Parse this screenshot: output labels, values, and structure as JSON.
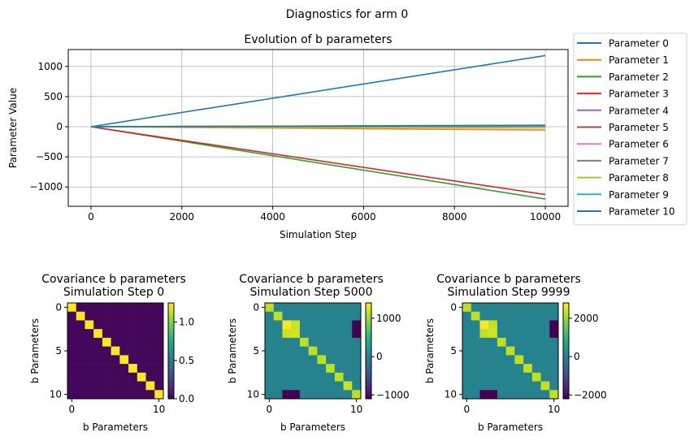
{
  "figure": {
    "suptitle": "Diagnostics for arm 0"
  },
  "chart_data": [
    {
      "type": "line",
      "title": "Evolution of b parameters",
      "xlabel": "Simulation Step",
      "ylabel": "Parameter Value",
      "xlim": [
        -500,
        10500
      ],
      "ylim": [
        -1320,
        1280
      ],
      "xticks": [
        0,
        2000,
        4000,
        6000,
        8000,
        10000
      ],
      "xtick_labels": [
        "0",
        "2000",
        "4000",
        "6000",
        "8000",
        "10000"
      ],
      "yticks": [
        -1000,
        -500,
        0,
        500,
        1000
      ],
      "ytick_labels": [
        "−1000",
        "−500",
        "0",
        "500",
        "1000"
      ],
      "grid": true,
      "legend_position": "outside-right",
      "x": [
        0,
        10000
      ],
      "series": [
        {
          "name": "Parameter 0",
          "color": "#1f77b4",
          "values": [
            0,
            1180
          ]
        },
        {
          "name": "Parameter 1",
          "color": "#ff7f0e",
          "values": [
            0,
            -55
          ]
        },
        {
          "name": "Parameter 2",
          "color": "#2ca02c",
          "values": [
            0,
            -1200
          ]
        },
        {
          "name": "Parameter 3",
          "color": "#d62728",
          "values": [
            0,
            -1125
          ]
        },
        {
          "name": "Parameter 4",
          "color": "#9467bd",
          "values": [
            0,
            15
          ]
        },
        {
          "name": "Parameter 5",
          "color": "#8c564b",
          "values": [
            0,
            25
          ]
        },
        {
          "name": "Parameter 6",
          "color": "#e377c2",
          "values": [
            0,
            5
          ]
        },
        {
          "name": "Parameter 7",
          "color": "#7f7f7f",
          "values": [
            0,
            20
          ]
        },
        {
          "name": "Parameter 8",
          "color": "#bcbd22",
          "values": [
            0,
            -20
          ]
        },
        {
          "name": "Parameter 9",
          "color": "#17becf",
          "values": [
            0,
            10
          ]
        },
        {
          "name": "Parameter 10",
          "color": "#1f77b4",
          "values": [
            0,
            18
          ]
        }
      ]
    },
    {
      "type": "heatmap",
      "title": "Covariance b parameters\nSimulation Step 0",
      "title_lines": [
        "Covariance b parameters",
        "Simulation Step 0"
      ],
      "xlabel": "b Parameters",
      "ylabel": "b Parameters",
      "xticks": [
        0,
        10
      ],
      "xtick_labels": [
        "0",
        "10"
      ],
      "yticks": [
        0,
        5,
        10
      ],
      "ytick_labels": [
        "0",
        "5",
        "10"
      ],
      "colormap": "viridis",
      "vmin": 0.0,
      "vmax": 1.25,
      "colorbar_ticks": [
        0.0,
        0.5,
        1.0
      ],
      "colorbar_tick_labels": [
        "0.0",
        "0.5",
        "1.0"
      ],
      "diagonal": [
        1.25,
        1.25,
        1.25,
        1.25,
        1.25,
        1.25,
        1.25,
        1.25,
        1.25,
        1.25,
        1.25
      ],
      "off_diagonal_default": 0.02,
      "special_cells": []
    },
    {
      "type": "heatmap",
      "title": "Covariance b parameters\nSimulation Step 5000",
      "title_lines": [
        "Covariance b parameters",
        "Simulation Step 5000"
      ],
      "xlabel": "b Parameters",
      "ylabel": "b Parameters",
      "xticks": [
        0,
        10
      ],
      "xtick_labels": [
        "0",
        "10"
      ],
      "yticks": [
        0,
        5,
        10
      ],
      "ytick_labels": [
        "0",
        "5",
        "10"
      ],
      "colormap": "viridis",
      "vmin": -1100,
      "vmax": 1400,
      "colorbar_ticks": [
        -1000,
        0,
        1000
      ],
      "colorbar_tick_labels": [
        "−1000",
        "0",
        "1000"
      ],
      "diagonal": [
        1150,
        1150,
        1400,
        1250,
        1150,
        1150,
        1150,
        1150,
        1150,
        1200,
        1150
      ],
      "off_diagonal_default": 0,
      "special_cells": [
        {
          "row": 2,
          "col": 3,
          "value": 1200
        },
        {
          "row": 3,
          "col": 2,
          "value": 1200
        },
        {
          "row": 2,
          "col": 10,
          "value": -1100
        },
        {
          "row": 3,
          "col": 10,
          "value": -1100
        },
        {
          "row": 10,
          "col": 2,
          "value": -1100
        },
        {
          "row": 10,
          "col": 3,
          "value": -1100
        }
      ]
    },
    {
      "type": "heatmap",
      "title": "Covariance b parameters\nSimulation Step 9999",
      "title_lines": [
        "Covariance b parameters",
        "Simulation Step 9999"
      ],
      "xlabel": "b Parameters",
      "ylabel": "b Parameters",
      "xticks": [
        0,
        10
      ],
      "xtick_labels": [
        "0",
        "10"
      ],
      "yticks": [
        0,
        5,
        10
      ],
      "ytick_labels": [
        "0",
        "5",
        "10"
      ],
      "colormap": "viridis",
      "vmin": -2200,
      "vmax": 2800,
      "colorbar_ticks": [
        -2000,
        0,
        2000
      ],
      "colorbar_tick_labels": [
        "−2000",
        "0",
        "2000"
      ],
      "diagonal": [
        2300,
        2300,
        2800,
        2450,
        2300,
        2300,
        2300,
        2300,
        2300,
        2350,
        2300
      ],
      "off_diagonal_default": 0,
      "special_cells": [
        {
          "row": 2,
          "col": 3,
          "value": 2350
        },
        {
          "row": 3,
          "col": 2,
          "value": 2350
        },
        {
          "row": 2,
          "col": 10,
          "value": -2200
        },
        {
          "row": 3,
          "col": 10,
          "value": -2200
        },
        {
          "row": 10,
          "col": 2,
          "value": -2200
        },
        {
          "row": 10,
          "col": 3,
          "value": -2200
        }
      ]
    }
  ]
}
